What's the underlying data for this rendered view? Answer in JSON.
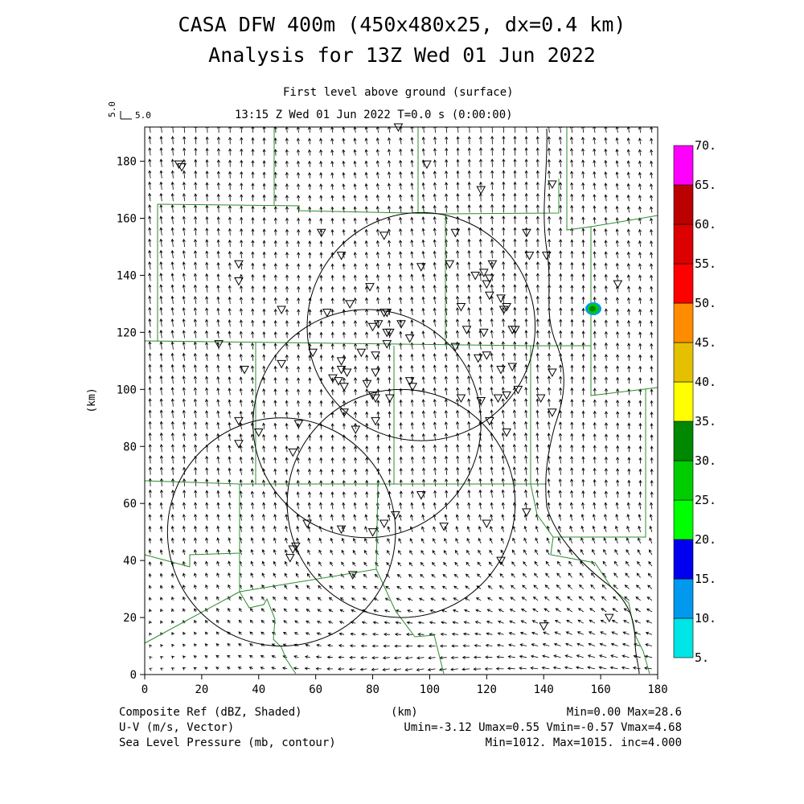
{
  "title": {
    "line1": "CASA DFW 400m (450x480x25, dx=0.4 km)",
    "line2": "Analysis for 13Z Wed 01 Jun 2022"
  },
  "subtitle": {
    "level": "First level above ground (surface)",
    "time": "13:15 Z Wed 01 Jun 2022    T=0.0 s (0:00:00)"
  },
  "vector_key": {
    "value_x": "5.0",
    "value_y": "5.0"
  },
  "axes": {
    "xlabel": "(km)",
    "ylabel": "(km)",
    "xticks": [
      "0",
      "20",
      "40",
      "60",
      "80",
      "100",
      "120",
      "140",
      "160",
      "180"
    ],
    "yticks": [
      "0",
      "20",
      "40",
      "60",
      "80",
      "100",
      "120",
      "140",
      "160",
      "180"
    ],
    "xlim": [
      0,
      180
    ],
    "ylim": [
      0,
      192
    ]
  },
  "colorbar": {
    "labels": [
      "5.",
      "10.",
      "15.",
      "20.",
      "25.",
      "30.",
      "35.",
      "40.",
      "45.",
      "50.",
      "55.",
      "60.",
      "65.",
      "70."
    ],
    "colors": [
      "#00e5e5",
      "#0099ee",
      "#0000ee",
      "#00ff00",
      "#00cc00",
      "#008800",
      "#ffff00",
      "#e5c000",
      "#ff8c00",
      "#ff0000",
      "#dd0000",
      "#bb0000",
      "#ff00ff"
    ]
  },
  "footer": {
    "field1": "Composite Ref (dBZ, Shaded)",
    "field2": "U-V (m/s, Vector)",
    "field3": "Sea Level Pressure (mb, contour)",
    "unit": "(km)",
    "stats1": "Min=0.00 Max=28.6",
    "stats2": "Umin=-3.12 Umax=0.55 Vmin=-0.57 Vmax=4.68",
    "stats3": "Min=1012. Max=1015. inc=4.000"
  },
  "radar_circles": [
    {
      "cx": 97,
      "cy": 122,
      "r": 40
    },
    {
      "cx": 78,
      "cy": 88,
      "r": 40
    },
    {
      "cx": 90,
      "cy": 60,
      "r": 40
    },
    {
      "cx": 48,
      "cy": 50,
      "r": 40
    }
  ],
  "echo": {
    "x": 157,
    "y": 128,
    "dbz": 28.6
  },
  "stations": [
    [
      12,
      179
    ],
    [
      13,
      178
    ],
    [
      89,
      192
    ],
    [
      99,
      179
    ],
    [
      118,
      170
    ],
    [
      143,
      172
    ],
    [
      62,
      155
    ],
    [
      84,
      154
    ],
    [
      109,
      155
    ],
    [
      134,
      155
    ],
    [
      33,
      144
    ],
    [
      33,
      138
    ],
    [
      69,
      147
    ],
    [
      97,
      143
    ],
    [
      107,
      144
    ],
    [
      122,
      144
    ],
    [
      135,
      147
    ],
    [
      141,
      147
    ],
    [
      119,
      141
    ],
    [
      116,
      140
    ],
    [
      121,
      139
    ],
    [
      120,
      137
    ],
    [
      121,
      133
    ],
    [
      125,
      132
    ],
    [
      79,
      136
    ],
    [
      72,
      130
    ],
    [
      48,
      128
    ],
    [
      64,
      127
    ],
    [
      84,
      127
    ],
    [
      85,
      127
    ],
    [
      111,
      129
    ],
    [
      127,
      129
    ],
    [
      126,
      128
    ],
    [
      166,
      137
    ],
    [
      82,
      123
    ],
    [
      90,
      123
    ],
    [
      80,
      122
    ],
    [
      85,
      120
    ],
    [
      86,
      120
    ],
    [
      113,
      121
    ],
    [
      119,
      120
    ],
    [
      129,
      121
    ],
    [
      130,
      121
    ],
    [
      93,
      118
    ],
    [
      85,
      116
    ],
    [
      26,
      116
    ],
    [
      59,
      113
    ],
    [
      76,
      113
    ],
    [
      109,
      115
    ],
    [
      120,
      112
    ],
    [
      117,
      111
    ],
    [
      81,
      112
    ],
    [
      35,
      107
    ],
    [
      48,
      109
    ],
    [
      69,
      110
    ],
    [
      69,
      107
    ],
    [
      71,
      106
    ],
    [
      66,
      104
    ],
    [
      68,
      103
    ],
    [
      81,
      106
    ],
    [
      125,
      107
    ],
    [
      129,
      108
    ],
    [
      143,
      106
    ],
    [
      93,
      103
    ],
    [
      94,
      101
    ],
    [
      70,
      101
    ],
    [
      78,
      102
    ],
    [
      111,
      97
    ],
    [
      118,
      96
    ],
    [
      124,
      97
    ],
    [
      127,
      98
    ],
    [
      131,
      100
    ],
    [
      139,
      97
    ],
    [
      80,
      98
    ],
    [
      81,
      97
    ],
    [
      86,
      97
    ],
    [
      70,
      92
    ],
    [
      33,
      89
    ],
    [
      54,
      88
    ],
    [
      81,
      89
    ],
    [
      121,
      89
    ],
    [
      143,
      92
    ],
    [
      127,
      85
    ],
    [
      33,
      81
    ],
    [
      40,
      85
    ],
    [
      74,
      86
    ],
    [
      52,
      78
    ],
    [
      97,
      63
    ],
    [
      134,
      57
    ],
    [
      88,
      56
    ],
    [
      57,
      53
    ],
    [
      84,
      53
    ],
    [
      69,
      51
    ],
    [
      80,
      50
    ],
    [
      105,
      52
    ],
    [
      120,
      53
    ],
    [
      53,
      45
    ],
    [
      52,
      44
    ],
    [
      51,
      41
    ],
    [
      125,
      40
    ],
    [
      73,
      35
    ],
    [
      140,
      17
    ],
    [
      163,
      20
    ]
  ]
}
